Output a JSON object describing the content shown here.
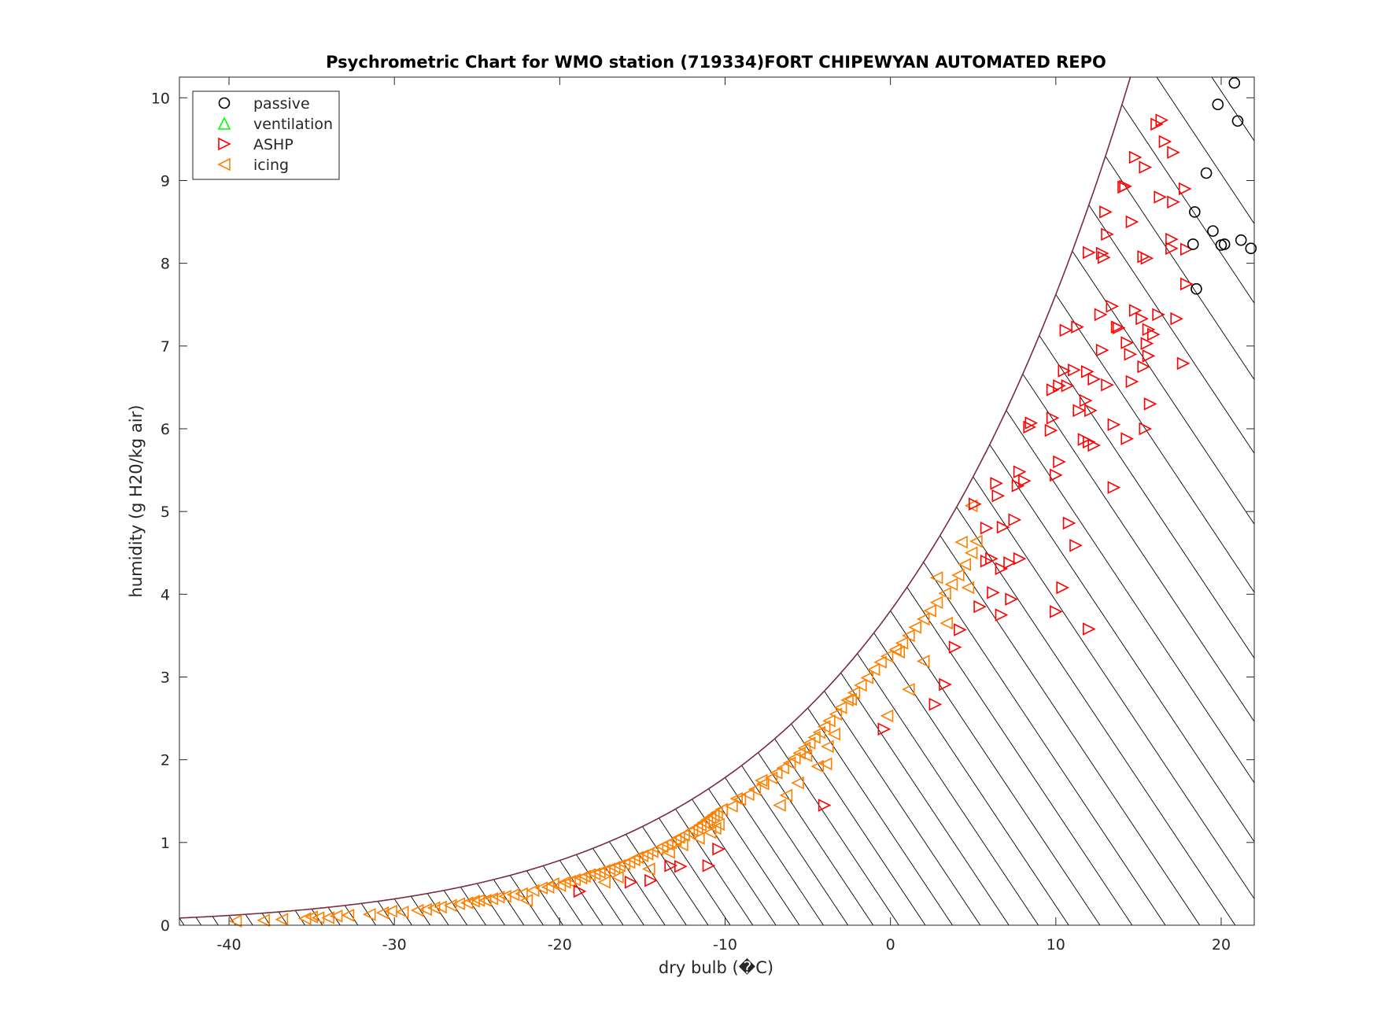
{
  "chart_data": {
    "type": "scatter",
    "title": "Psychrometric Chart for WMO station (719334)FORT CHIPEWYAN AUTOMATED REPO",
    "xlabel": "dry bulb (�C)",
    "ylabel": "humidity (g H20/kg air)",
    "xlim": [
      -43,
      22
    ],
    "ylim": [
      0,
      10.25
    ],
    "xticks": [
      -40,
      -30,
      -20,
      -10,
      0,
      10,
      20
    ],
    "yticks": [
      0,
      1,
      2,
      3,
      4,
      5,
      6,
      7,
      8,
      9,
      10
    ],
    "legend_position": "top-left",
    "colors": {
      "passive": "#000000",
      "ventilation": "#00ff00",
      "ASHP": "#ff0000",
      "icing": "#ff8000",
      "saturation_curve": "#7a2c3c",
      "constant_lines": "#000000"
    },
    "series": [
      {
        "name": "passive",
        "marker": "circle",
        "points": [
          [
            20.8,
            10.18
          ],
          [
            19.8,
            9.92
          ],
          [
            21.0,
            9.72
          ],
          [
            19.1,
            9.09
          ],
          [
            18.4,
            8.62
          ],
          [
            19.5,
            8.39
          ],
          [
            18.3,
            8.23
          ],
          [
            20.0,
            8.22
          ],
          [
            20.2,
            8.23
          ],
          [
            21.2,
            8.28
          ],
          [
            21.8,
            8.18
          ],
          [
            18.5,
            7.69
          ]
        ]
      },
      {
        "name": "ventilation",
        "marker": "triangle-up",
        "points": []
      },
      {
        "name": "ASHP",
        "marker": "triangle-right",
        "points": [
          [
            16.4,
            9.73
          ],
          [
            16.1,
            9.68
          ],
          [
            16.6,
            9.47
          ],
          [
            17.1,
            9.34
          ],
          [
            14.8,
            9.28
          ],
          [
            15.4,
            9.16
          ],
          [
            14.2,
            8.93
          ],
          [
            14.1,
            8.92
          ],
          [
            17.8,
            8.9
          ],
          [
            16.3,
            8.8
          ],
          [
            17.1,
            8.74
          ],
          [
            13.0,
            8.62
          ],
          [
            14.6,
            8.5
          ],
          [
            13.1,
            8.35
          ],
          [
            17.0,
            8.29
          ],
          [
            17.0,
            8.18
          ],
          [
            17.9,
            8.17
          ],
          [
            12.0,
            8.13
          ],
          [
            12.8,
            8.12
          ],
          [
            12.9,
            8.07
          ],
          [
            15.3,
            8.08
          ],
          [
            15.5,
            8.06
          ],
          [
            17.9,
            7.75
          ],
          [
            13.4,
            7.48
          ],
          [
            12.7,
            7.38
          ],
          [
            14.8,
            7.43
          ],
          [
            16.2,
            7.38
          ],
          [
            15.2,
            7.33
          ],
          [
            15.6,
            7.2
          ],
          [
            17.3,
            7.33
          ],
          [
            11.3,
            7.23
          ],
          [
            10.6,
            7.19
          ],
          [
            13.7,
            7.23
          ],
          [
            13.8,
            7.22
          ],
          [
            15.9,
            7.14
          ],
          [
            14.3,
            7.04
          ],
          [
            15.5,
            7.03
          ],
          [
            12.8,
            6.95
          ],
          [
            14.5,
            6.9
          ],
          [
            15.6,
            6.88
          ],
          [
            15.3,
            6.75
          ],
          [
            17.7,
            6.79
          ],
          [
            11.1,
            6.71
          ],
          [
            11.9,
            6.69
          ],
          [
            10.5,
            6.7
          ],
          [
            12.3,
            6.6
          ],
          [
            10.7,
            6.52
          ],
          [
            10.2,
            6.52
          ],
          [
            14.6,
            6.57
          ],
          [
            13.1,
            6.53
          ],
          [
            11.8,
            6.34
          ],
          [
            9.8,
            6.47
          ],
          [
            11.4,
            6.22
          ],
          [
            12.1,
            6.22
          ],
          [
            15.7,
            6.3
          ],
          [
            9.8,
            6.13
          ],
          [
            8.5,
            6.07
          ],
          [
            8.4,
            6.02
          ],
          [
            9.7,
            5.98
          ],
          [
            13.5,
            6.05
          ],
          [
            15.4,
            6.0
          ],
          [
            11.7,
            5.87
          ],
          [
            12.0,
            5.84
          ],
          [
            12.3,
            5.8
          ],
          [
            14.3,
            5.88
          ],
          [
            10.2,
            5.6
          ],
          [
            10.0,
            5.44
          ],
          [
            7.8,
            5.48
          ],
          [
            8.1,
            5.37
          ],
          [
            7.7,
            5.31
          ],
          [
            6.4,
            5.34
          ],
          [
            13.5,
            5.29
          ],
          [
            5.1,
            5.09
          ],
          [
            6.5,
            5.19
          ],
          [
            7.5,
            4.9
          ],
          [
            6.8,
            4.81
          ],
          [
            5.8,
            4.8
          ],
          [
            10.8,
            4.86
          ],
          [
            11.2,
            4.59
          ],
          [
            5.8,
            4.4
          ],
          [
            6.1,
            4.43
          ],
          [
            7.2,
            4.38
          ],
          [
            7.8,
            4.43
          ],
          [
            6.7,
            4.31
          ],
          [
            10.4,
            4.08
          ],
          [
            6.2,
            4.02
          ],
          [
            7.3,
            3.94
          ],
          [
            5.4,
            3.85
          ],
          [
            6.7,
            3.75
          ],
          [
            10.0,
            3.79
          ],
          [
            4.2,
            3.57
          ],
          [
            12.0,
            3.58
          ],
          [
            3.9,
            3.36
          ],
          [
            3.3,
            2.91
          ],
          [
            2.7,
            2.67
          ],
          [
            -0.4,
            2.37
          ],
          [
            -4.0,
            1.45
          ],
          [
            -10.4,
            0.92
          ],
          [
            -11.0,
            0.72
          ],
          [
            -12.7,
            0.71
          ],
          [
            -13.3,
            0.72
          ],
          [
            -14.5,
            0.54
          ],
          [
            -15.7,
            0.52
          ],
          [
            -18.8,
            0.41
          ]
        ]
      },
      {
        "name": "icing",
        "marker": "triangle-left",
        "points": [
          [
            -39.6,
            0.05
          ],
          [
            -37.9,
            0.06
          ],
          [
            -36.8,
            0.07
          ],
          [
            -35.4,
            0.08
          ],
          [
            -35.0,
            0.1
          ],
          [
            -34.6,
            0.09
          ],
          [
            -34.0,
            0.09
          ],
          [
            -33.5,
            0.11
          ],
          [
            -32.8,
            0.12
          ],
          [
            -31.5,
            0.13
          ],
          [
            -30.7,
            0.15
          ],
          [
            -30.2,
            0.17
          ],
          [
            -29.5,
            0.16
          ],
          [
            -28.6,
            0.18
          ],
          [
            -28.1,
            0.19
          ],
          [
            -27.6,
            0.21
          ],
          [
            -27.2,
            0.22
          ],
          [
            -26.6,
            0.24
          ],
          [
            -26.1,
            0.26
          ],
          [
            -25.6,
            0.27
          ],
          [
            -25.2,
            0.29
          ],
          [
            -24.9,
            0.3
          ],
          [
            -24.5,
            0.3
          ],
          [
            -24.1,
            0.32
          ],
          [
            -23.7,
            0.34
          ],
          [
            -23.3,
            0.35
          ],
          [
            -22.8,
            0.37
          ],
          [
            -22.3,
            0.38
          ],
          [
            -22.0,
            0.3
          ],
          [
            -21.6,
            0.42
          ],
          [
            -21.1,
            0.45
          ],
          [
            -20.7,
            0.46
          ],
          [
            -20.4,
            0.5
          ],
          [
            -20.0,
            0.48
          ],
          [
            -19.7,
            0.52
          ],
          [
            -19.4,
            0.53
          ],
          [
            -19.1,
            0.55
          ],
          [
            -18.7,
            0.57
          ],
          [
            -18.5,
            0.59
          ],
          [
            -18.2,
            0.61
          ],
          [
            -17.9,
            0.62
          ],
          [
            -17.6,
            0.64
          ],
          [
            -17.3,
            0.66
          ],
          [
            -17.0,
            0.68
          ],
          [
            -16.7,
            0.7
          ],
          [
            -16.4,
            0.72
          ],
          [
            -16.1,
            0.74
          ],
          [
            -15.8,
            0.76
          ],
          [
            -15.5,
            0.79
          ],
          [
            -15.3,
            0.82
          ],
          [
            -15.0,
            0.84
          ],
          [
            -14.7,
            0.86
          ],
          [
            -14.4,
            0.89
          ],
          [
            -14.1,
            0.92
          ],
          [
            -13.8,
            0.95
          ],
          [
            -13.5,
            0.98
          ],
          [
            -13.3,
            1.0
          ],
          [
            -13.0,
            1.03
          ],
          [
            -12.8,
            1.06
          ],
          [
            -12.5,
            1.09
          ],
          [
            -12.2,
            1.12
          ],
          [
            -12.0,
            1.15
          ],
          [
            -11.7,
            1.18
          ],
          [
            -11.5,
            1.21
          ],
          [
            -11.3,
            1.24
          ],
          [
            -11.1,
            1.27
          ],
          [
            -10.9,
            1.3
          ],
          [
            -10.7,
            1.33
          ],
          [
            -10.5,
            1.36
          ],
          [
            -10.2,
            1.4
          ],
          [
            -13.4,
            0.88
          ],
          [
            -12.6,
            0.97
          ],
          [
            -11.6,
            1.05
          ],
          [
            -10.9,
            1.12
          ],
          [
            -16.5,
            0.58
          ],
          [
            -17.3,
            0.52
          ],
          [
            -14.6,
            0.68
          ],
          [
            -10.4,
            1.22
          ],
          [
            -10.6,
            1.17
          ],
          [
            -9.6,
            1.44
          ],
          [
            -9.1,
            1.52
          ],
          [
            -8.6,
            1.58
          ],
          [
            -8.2,
            1.64
          ],
          [
            -7.7,
            1.71
          ],
          [
            -7.2,
            1.78
          ],
          [
            -6.9,
            1.84
          ],
          [
            -6.5,
            1.9
          ],
          [
            -6.1,
            1.96
          ],
          [
            -5.8,
            2.02
          ],
          [
            -5.5,
            2.08
          ],
          [
            -5.2,
            2.14
          ],
          [
            -4.9,
            2.2
          ],
          [
            -4.6,
            2.27
          ],
          [
            -4.3,
            2.33
          ],
          [
            -4.0,
            2.4
          ],
          [
            -3.7,
            2.47
          ],
          [
            -3.3,
            2.55
          ],
          [
            -3.0,
            2.63
          ],
          [
            -2.6,
            2.72
          ],
          [
            -2.2,
            2.81
          ],
          [
            -1.8,
            2.9
          ],
          [
            -1.4,
            2.99
          ],
          [
            -1.0,
            3.09
          ],
          [
            -0.6,
            3.18
          ],
          [
            -0.2,
            3.25
          ],
          [
            0.3,
            3.33
          ],
          [
            0.7,
            3.41
          ],
          [
            1.1,
            3.5
          ],
          [
            1.5,
            3.6
          ],
          [
            2.0,
            3.7
          ],
          [
            2.4,
            3.8
          ],
          [
            2.8,
            3.9
          ],
          [
            3.3,
            4.01
          ],
          [
            3.7,
            4.12
          ],
          [
            4.1,
            4.23
          ],
          [
            4.5,
            4.36
          ],
          [
            4.9,
            4.5
          ],
          [
            5.2,
            4.64
          ],
          [
            4.9,
            5.07
          ],
          [
            4.3,
            4.63
          ],
          [
            -6.7,
            1.45
          ],
          [
            -6.3,
            1.57
          ],
          [
            -5.6,
            1.72
          ],
          [
            -4.4,
            1.92
          ],
          [
            -3.8,
            2.16
          ],
          [
            -3.4,
            2.31
          ],
          [
            -2.4,
            2.73
          ],
          [
            -0.2,
            2.53
          ],
          [
            1.1,
            2.85
          ],
          [
            2.0,
            3.19
          ],
          [
            3.4,
            3.65
          ],
          [
            4.7,
            4.08
          ],
          [
            2.8,
            4.2
          ],
          [
            0.5,
            3.3
          ],
          [
            -3.9,
            1.95
          ],
          [
            -5.1,
            2.05
          ],
          [
            -7.8,
            1.75
          ],
          [
            -9.3,
            1.53
          ]
        ]
      }
    ]
  }
}
